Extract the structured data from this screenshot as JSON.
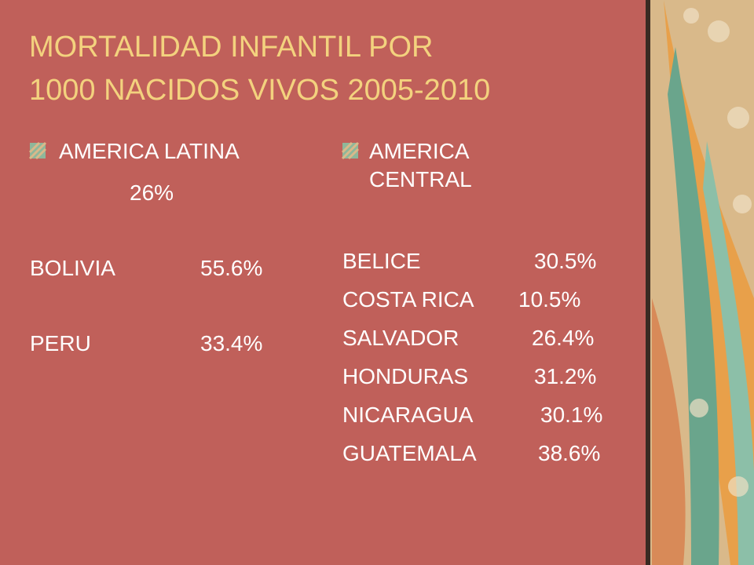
{
  "title_lines": [
    "MORTALIDAD INFANTIL POR",
    "1000 NACIDOS VIVOS 2005-2010"
  ],
  "left": {
    "heading": "AMERICA LATINA",
    "total": "26%",
    "rows": [
      [
        "BOLIVIA",
        "55.6%"
      ],
      [
        "PERU",
        "33.4%"
      ]
    ]
  },
  "right": {
    "heading": "AMERICA CENTRAL",
    "rows": [
      [
        "BELICE",
        "30.5%"
      ],
      [
        "COSTA RICA",
        "10.5%"
      ],
      [
        "SALVADOR",
        "26.4%"
      ],
      [
        "HONDURAS",
        "31.2%"
      ],
      [
        "NICARAGUA",
        "30.1%"
      ],
      [
        "GUATEMALA",
        "38.6%"
      ]
    ]
  }
}
